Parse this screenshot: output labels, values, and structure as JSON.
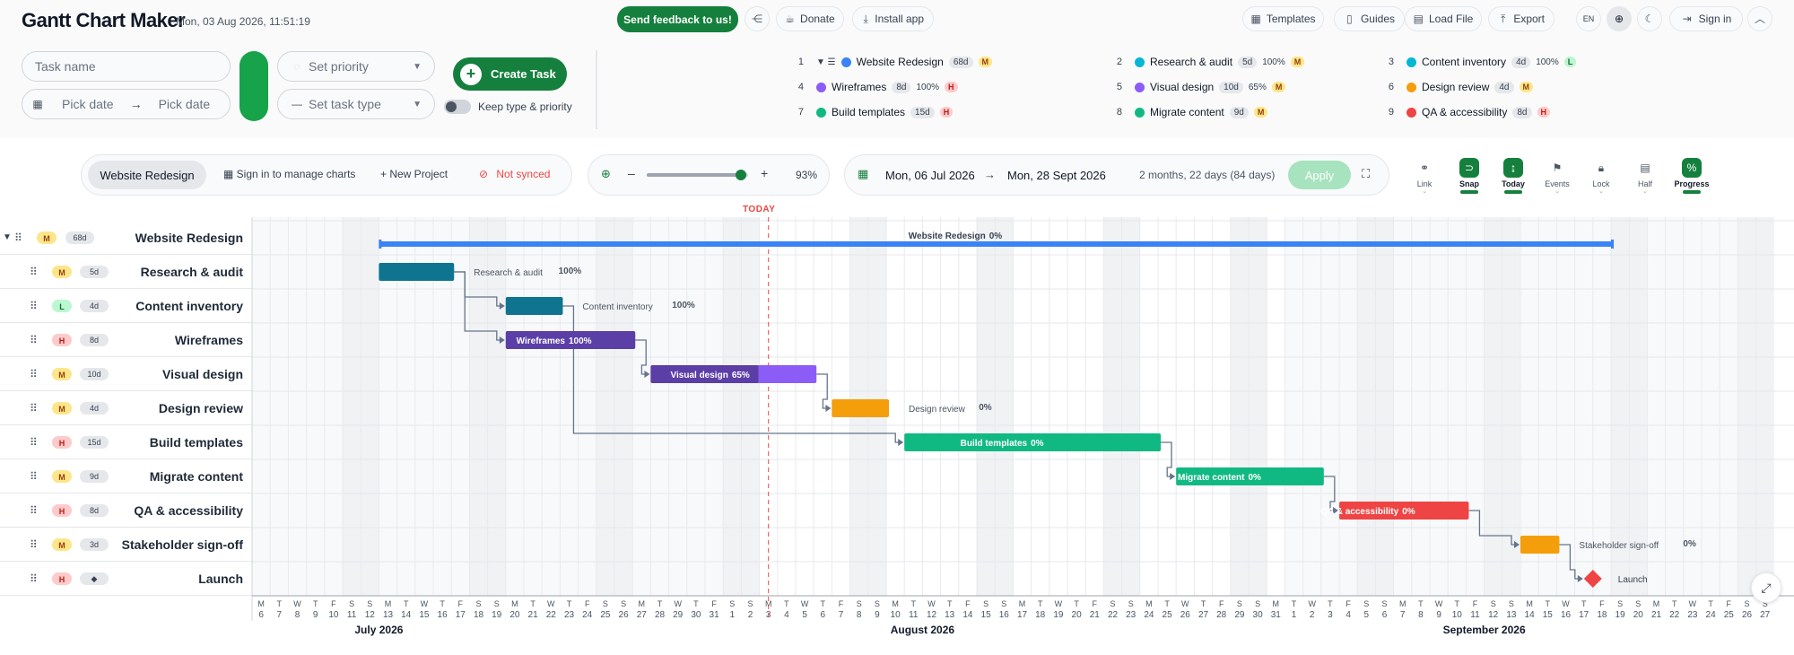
{
  "app": {
    "title": "Gantt Chart Maker",
    "datetime": "Mon, 03 Aug 2026, 11:51:19"
  },
  "header": {
    "feedback_label": "Send feedback to us!",
    "donate_label": "Donate",
    "install_label": "Install app",
    "templates_label": "Templates",
    "guides_label": "Guides",
    "load_label": "Load File",
    "export_label": "Export",
    "lang_label": "EN",
    "signin_label": "Sign in"
  },
  "form": {
    "task_name_placeholder": "Task name",
    "start_date_placeholder": "Pick date",
    "end_date_placeholder": "Pick date",
    "priority_placeholder": "Set priority",
    "type_placeholder": "Set task type",
    "create_label": "Create Task",
    "keep_label": "Keep type & priority"
  },
  "summary": [
    {
      "num": "1",
      "name": "Website Redesign",
      "dur": "68d",
      "pct": "",
      "pri": "M",
      "color": "#3b82f6",
      "group": true
    },
    {
      "num": "2",
      "name": "Research & audit",
      "dur": "5d",
      "pct": "100%",
      "pri": "M",
      "color": "#06b6d4"
    },
    {
      "num": "3",
      "name": "Content inventory",
      "dur": "4d",
      "pct": "100%",
      "pri": "L",
      "color": "#06b6d4"
    },
    {
      "num": "4",
      "name": "Wireframes",
      "dur": "8d",
      "pct": "100%",
      "pri": "H",
      "color": "#8b5cf6"
    },
    {
      "num": "5",
      "name": "Visual design",
      "dur": "10d",
      "pct": "65%",
      "pri": "M",
      "color": "#8b5cf6"
    },
    {
      "num": "6",
      "name": "Design review",
      "dur": "4d",
      "pct": "",
      "pri": "M",
      "color": "#f59e0b"
    },
    {
      "num": "7",
      "name": "Build templates",
      "dur": "15d",
      "pct": "",
      "pri": "H",
      "color": "#10b981"
    },
    {
      "num": "8",
      "name": "Migrate content",
      "dur": "9d",
      "pct": "",
      "pri": "M",
      "color": "#10b981"
    },
    {
      "num": "9",
      "name": "QA & accessibility",
      "dur": "8d",
      "pct": "",
      "pri": "H",
      "color": "#ef4444"
    }
  ],
  "toolbar": {
    "project_label": "Website Redesign",
    "manage_label": "Sign in to manage charts",
    "new_project_label": "New Project",
    "sync_label": "Not synced",
    "zoom_label": "93%",
    "zoom_value": 0.93,
    "start_label": "Mon, 06 Jul 2026",
    "end_label": "Mon, 28 Sept 2026",
    "span_label": "2 months, 22 days (84 days)",
    "apply_label": "Apply",
    "tools": [
      {
        "label": "Link",
        "icon": "link-icon",
        "on": false,
        "chev": true
      },
      {
        "label": "Snap",
        "icon": "magnet-icon",
        "on": true,
        "bar": true
      },
      {
        "label": "Today",
        "icon": "today-icon",
        "on": true,
        "bar": true
      },
      {
        "label": "Events",
        "icon": "flag-icon",
        "on": false,
        "chev": true
      },
      {
        "label": "Lock",
        "icon": "lock-icon",
        "on": false,
        "chev": true
      },
      {
        "label": "Half",
        "icon": "half-icon",
        "on": false,
        "chev": true
      },
      {
        "label": "Progress",
        "icon": "percent-icon",
        "on": true,
        "bar": true
      }
    ]
  },
  "gantt": {
    "today_label": "TODAY",
    "timeline_start": "2026-07-06",
    "timeline_days": 84,
    "today": "2026-08-03",
    "months": [
      {
        "label": "July 2026",
        "start_day": 7
      },
      {
        "label": "August 2026",
        "start_day": 37
      },
      {
        "label": "September 2026",
        "start_day": 68
      }
    ],
    "rows": [
      {
        "name": "Website Redesign",
        "pri": "M",
        "dur": "68d",
        "type": "group",
        "start": 7,
        "days": 68,
        "pct": 0,
        "pct_label": "0%",
        "color": "#3b82f6"
      },
      {
        "name": "Research & audit",
        "pri": "M",
        "dur": "5d",
        "type": "task",
        "start": 7,
        "days": 4,
        "pct": 100,
        "pct_label": "100%",
        "color": "#0e7490",
        "label_inside": false
      },
      {
        "name": "Content inventory",
        "pri": "L",
        "dur": "4d",
        "type": "task",
        "start": 14,
        "days": 3,
        "pct": 100,
        "pct_label": "100%",
        "color": "#0e7490",
        "label_inside": false
      },
      {
        "name": "Wireframes",
        "pri": "H",
        "dur": "8d",
        "type": "task",
        "start": 14,
        "days": 7,
        "pct": 100,
        "pct_label": "100%",
        "color": "#5b3ea6",
        "label_inside": true
      },
      {
        "name": "Visual design",
        "pri": "M",
        "dur": "10d",
        "type": "task",
        "start": 22,
        "days": 9,
        "pct": 65,
        "pct_label": "65%",
        "color": "#5b3ea6",
        "light": "#8b5cf6",
        "label_inside": true
      },
      {
        "name": "Design review",
        "pri": "M",
        "dur": "4d",
        "type": "task",
        "start": 32,
        "days": 3,
        "pct": 0,
        "pct_label": "0%",
        "color": "#f59e0b",
        "label_inside": false
      },
      {
        "name": "Build templates",
        "pri": "H",
        "dur": "15d",
        "type": "task",
        "start": 36,
        "days": 14,
        "pct": 0,
        "pct_label": "0%",
        "color": "#10b981",
        "label_inside": true
      },
      {
        "name": "Migrate content",
        "pri": "M",
        "dur": "9d",
        "type": "task",
        "start": 51,
        "days": 8,
        "pct": 0,
        "pct_label": "0%",
        "color": "#10b981",
        "label_inside": true
      },
      {
        "name": "QA & accessibility",
        "pri": "H",
        "dur": "8d",
        "type": "task",
        "start": 60,
        "days": 7,
        "pct": 0,
        "pct_label": "0%",
        "color": "#ef4444",
        "label_inside": true
      },
      {
        "name": "Stakeholder sign-off",
        "pri": "M",
        "dur": "3d",
        "type": "task",
        "start": 70,
        "days": 2,
        "pct": 0,
        "pct_label": "0%",
        "color": "#f59e0b",
        "label_inside": false
      },
      {
        "name": "Launch",
        "pri": "H",
        "dur": "◆",
        "type": "milestone",
        "start": 74,
        "days": 0,
        "pct": 0,
        "pct_label": "",
        "color": "#ef4444",
        "label_inside": false
      }
    ],
    "links": [
      [
        1,
        2
      ],
      [
        1,
        3
      ],
      [
        3,
        4
      ],
      [
        4,
        5
      ],
      [
        2,
        6
      ],
      [
        6,
        7
      ],
      [
        7,
        8
      ],
      [
        8,
        9
      ],
      [
        9,
        10
      ]
    ]
  },
  "colors": {
    "brand": "#15803d",
    "today": "#ef4444",
    "weekend": "#f3f4f6"
  }
}
